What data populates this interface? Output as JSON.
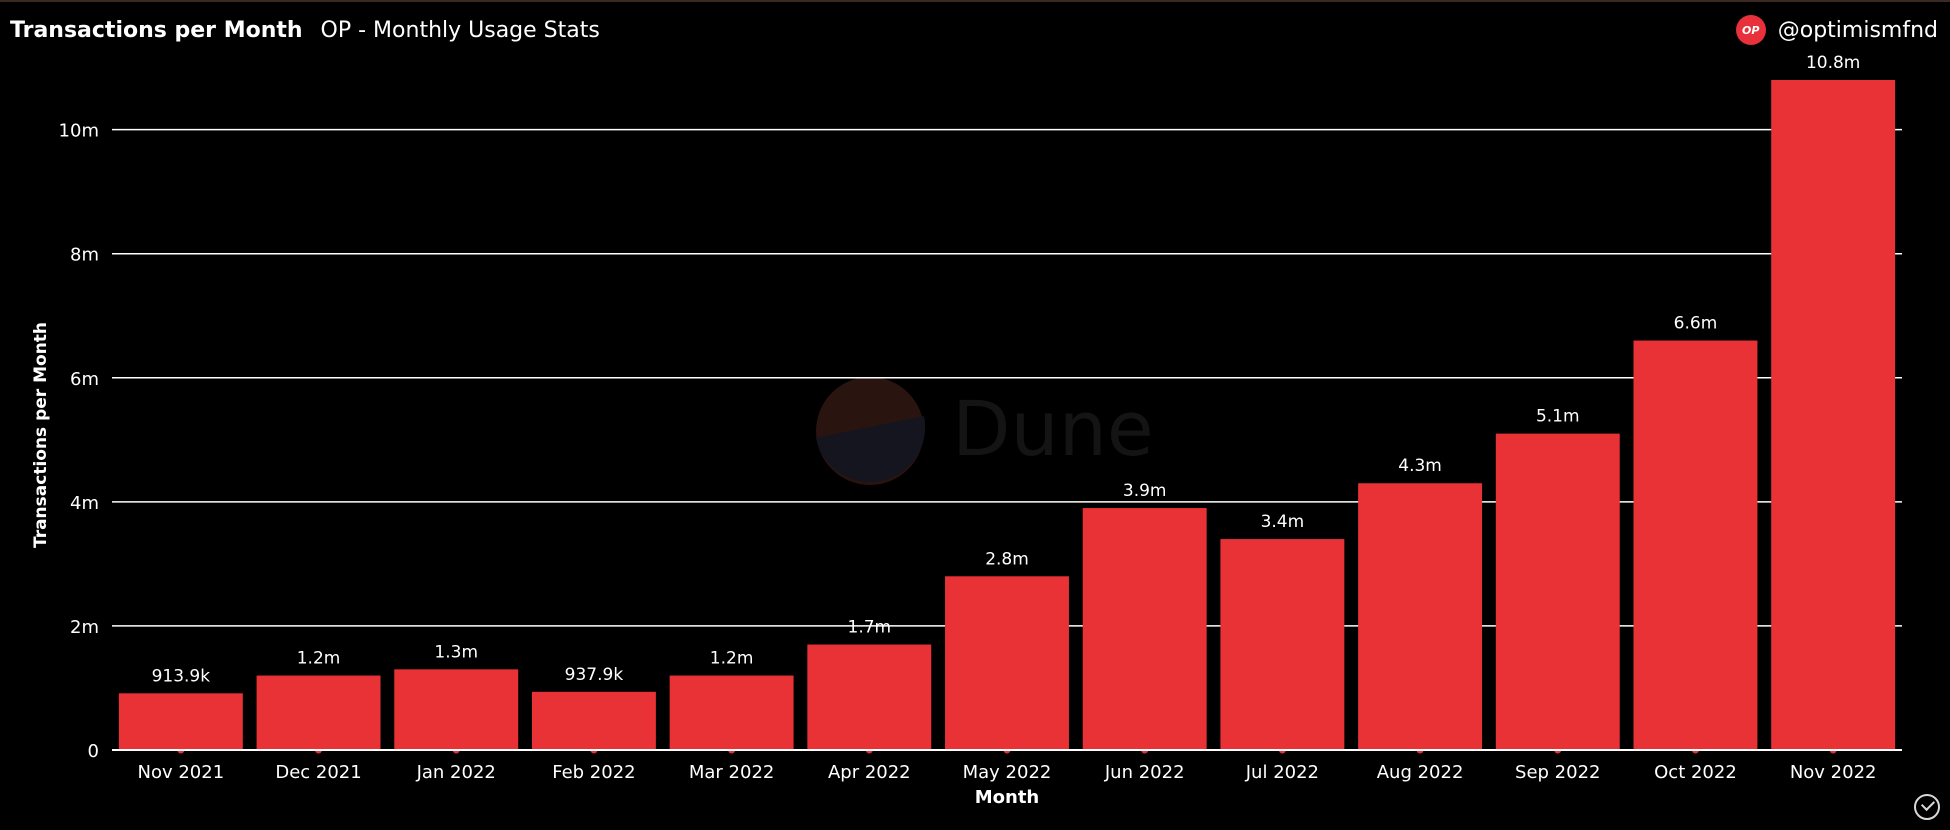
{
  "header": {
    "title": "Transactions per Month",
    "subtitle": "OP - Monthly Usage Stats",
    "brand_logo": "OP",
    "brand_handle": "@optimismfnd"
  },
  "watermark": "Dune",
  "colors": {
    "bar": "#e83235",
    "background": "#000000",
    "text": "#ffffff",
    "grid": "#ffffff",
    "brand": "#e8313a"
  },
  "icons": {
    "brand": "op-logo-icon",
    "status": "check-circle-icon"
  },
  "chart_data": {
    "type": "bar",
    "xlabel": "Month",
    "ylabel": "Transactions per Month",
    "ylim": [
      0,
      10.8
    ],
    "grid": true,
    "legend": "none",
    "y_ticks": [
      {
        "value": 0,
        "label": "0"
      },
      {
        "value": 2,
        "label": "2m"
      },
      {
        "value": 4,
        "label": "4m"
      },
      {
        "value": 6,
        "label": "6m"
      },
      {
        "value": 8,
        "label": "8m"
      },
      {
        "value": 10,
        "label": "10m"
      }
    ],
    "categories": [
      "Nov 2021",
      "Dec 2021",
      "Jan 2022",
      "Feb 2022",
      "Mar 2022",
      "Apr 2022",
      "May 2022",
      "Jun 2022",
      "Jul 2022",
      "Aug 2022",
      "Sep 2022",
      "Oct 2022",
      "Nov 2022"
    ],
    "values": [
      0.9139,
      1.2,
      1.3,
      0.9379,
      1.2,
      1.7,
      2.8,
      3.9,
      3.4,
      4.3,
      5.1,
      6.6,
      10.8
    ],
    "value_unit": "millions",
    "data_labels": [
      "913.9k",
      "1.2m",
      "1.3m",
      "937.9k",
      "1.2m",
      "1.7m",
      "2.8m",
      "3.9m",
      "3.4m",
      "4.3m",
      "5.1m",
      "6.6m",
      "10.8m"
    ]
  }
}
